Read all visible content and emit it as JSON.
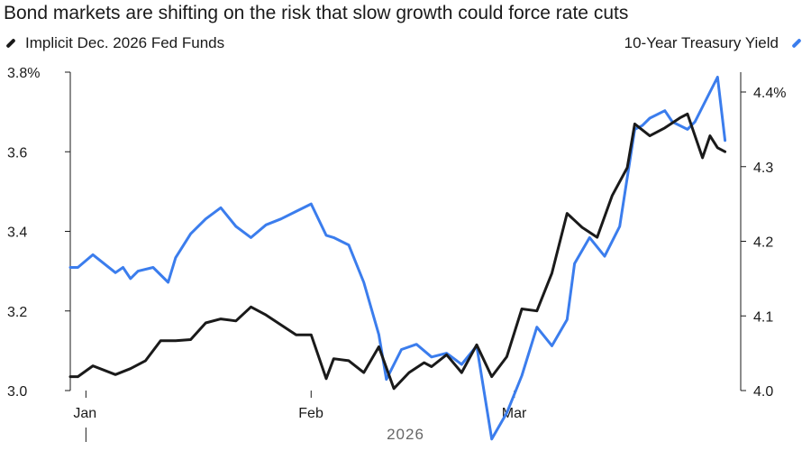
{
  "title": "Bond markets are shifting on the risk that slow growth could force rate cuts",
  "chart_data": {
    "type": "line",
    "title": "Bond markets are shifting on the risk that slow growth could force rate cuts",
    "xlabel": "2026",
    "x_ticks": [
      {
        "label": "Jan",
        "index": 1
      },
      {
        "label": "Feb",
        "index": 32
      },
      {
        "label": "Mar",
        "index": 59
      }
    ],
    "left_axis": {
      "ylim": [
        3.0,
        3.8
      ],
      "ticks": [
        "3.0",
        "3.2",
        "3.4",
        "3.6",
        "3.8%"
      ],
      "tick_values": [
        3.0,
        3.2,
        3.4,
        3.6,
        3.8
      ]
    },
    "right_axis": {
      "ylim": [
        4.0,
        4.42
      ],
      "ticks": [
        "4.0",
        "4.1",
        "4.2",
        "4.3",
        "4.4%"
      ],
      "tick_values": [
        4.0,
        4.1,
        4.2,
        4.3,
        4.4
      ]
    },
    "x_domain": [
      0,
      88
    ],
    "series": [
      {
        "name": "Implicit Dec. 2026 Fed Funds",
        "color": "#1a1a1a",
        "axis": "left",
        "x": [
          0,
          1,
          3,
          6,
          8,
          10,
          12,
          14,
          16,
          18,
          20,
          22,
          24,
          26,
          28,
          30,
          32,
          34,
          35,
          37,
          39,
          41,
          43,
          45,
          47,
          48,
          50,
          52,
          54,
          56,
          58,
          60,
          62,
          64,
          66,
          68,
          70,
          72,
          74,
          75,
          77,
          79,
          81,
          82,
          84,
          85,
          86,
          87
        ],
        "values": [
          3.035,
          3.035,
          3.062,
          3.04,
          3.055,
          3.075,
          3.125,
          3.125,
          3.128,
          3.17,
          3.18,
          3.175,
          3.21,
          3.19,
          3.165,
          3.14,
          3.14,
          3.03,
          3.08,
          3.075,
          3.045,
          3.11,
          3.005,
          3.045,
          3.07,
          3.06,
          3.09,
          3.045,
          3.115,
          3.035,
          3.085,
          3.205,
          3.2,
          3.295,
          3.445,
          3.41,
          3.385,
          3.49,
          3.56,
          3.67,
          3.64,
          3.66,
          3.685,
          3.695,
          3.585,
          3.64,
          3.61,
          3.6
        ]
      },
      {
        "name": "10-Year Treasury Yield",
        "color": "#3b7ded",
        "axis": "right",
        "x": [
          0,
          1,
          3,
          6,
          7,
          8,
          9,
          11,
          13,
          14,
          16,
          18,
          20,
          22,
          24,
          26,
          28,
          30,
          32,
          34,
          35,
          37,
          39,
          41,
          42,
          44,
          46,
          48,
          50,
          52,
          54,
          56,
          58,
          60,
          62,
          64,
          66,
          67,
          69,
          71,
          73,
          75,
          76,
          77,
          79,
          80,
          82,
          83,
          85,
          86,
          87
        ],
        "values": [
          4.165,
          4.165,
          4.182,
          4.158,
          4.165,
          4.15,
          4.16,
          4.165,
          4.145,
          4.178,
          4.21,
          4.23,
          4.245,
          4.22,
          4.205,
          4.222,
          4.23,
          4.24,
          4.25,
          4.208,
          4.205,
          4.195,
          4.145,
          4.075,
          4.015,
          4.055,
          4.062,
          4.045,
          4.05,
          4.035,
          4.06,
          3.935,
          3.97,
          4.02,
          4.085,
          4.06,
          4.095,
          4.17,
          4.205,
          4.18,
          4.22,
          4.35,
          4.355,
          4.365,
          4.375,
          4.36,
          4.35,
          4.36,
          4.4,
          4.42,
          4.335
        ]
      }
    ]
  }
}
